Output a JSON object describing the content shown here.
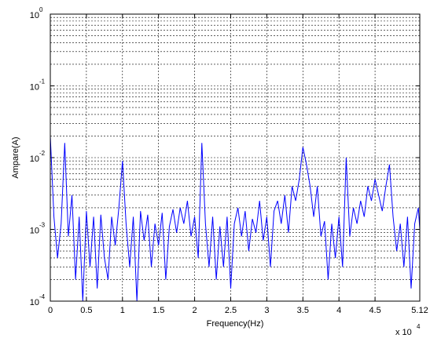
{
  "chart_data": {
    "type": "line",
    "xlabel": "Frequency(Hz)",
    "ylabel": "Ampare(A)",
    "x_multiplier": {
      "base": "x 10",
      "exponent": "4"
    },
    "xlim": [
      0,
      5.12
    ],
    "ylim": [
      0.0001,
      1
    ],
    "yscale": "log",
    "grid": true,
    "xticks": [
      0,
      0.5,
      1,
      1.5,
      2,
      2.5,
      3,
      3.5,
      4,
      4.5,
      5.12
    ],
    "yticks": [
      {
        "value": 0.0001,
        "label": "10",
        "sup": "-4"
      },
      {
        "value": 0.001,
        "label": "10",
        "sup": "-3"
      },
      {
        "value": 0.01,
        "label": "10",
        "sup": "-2"
      },
      {
        "value": 0.1,
        "label": "10",
        "sup": "-1"
      },
      {
        "value": 1,
        "label": "10",
        "sup": "0"
      }
    ],
    "series": [
      {
        "color": "#0000ff",
        "x": [
          0,
          0.05,
          0.1,
          0.15,
          0.2,
          0.25,
          0.3,
          0.35,
          0.4,
          0.45,
          0.5,
          0.55,
          0.6,
          0.65,
          0.7,
          0.75,
          0.8,
          0.85,
          0.9,
          0.95,
          1,
          1.05,
          1.1,
          1.15,
          1.2,
          1.25,
          1.3,
          1.35,
          1.4,
          1.45,
          1.5,
          1.55,
          1.6,
          1.65,
          1.7,
          1.75,
          1.8,
          1.85,
          1.9,
          1.95,
          2,
          2.05,
          2.1,
          2.15,
          2.2,
          2.25,
          2.3,
          2.35,
          2.4,
          2.45,
          2.5,
          2.55,
          2.6,
          2.65,
          2.7,
          2.75,
          2.8,
          2.85,
          2.9,
          2.95,
          3,
          3.05,
          3.1,
          3.15,
          3.2,
          3.25,
          3.3,
          3.35,
          3.4,
          3.45,
          3.5,
          3.55,
          3.6,
          3.65,
          3.7,
          3.75,
          3.8,
          3.85,
          3.9,
          3.95,
          4,
          4.05,
          4.1,
          4.15,
          4.2,
          4.25,
          4.3,
          4.35,
          4.4,
          4.45,
          4.5,
          4.55,
          4.6,
          4.65,
          4.7,
          4.75,
          4.8,
          4.85,
          4.9,
          4.95,
          5,
          5.05,
          5.1,
          5.12
        ],
        "values": [
          0.02,
          0.0015,
          0.0004,
          0.0012,
          0.016,
          0.0008,
          0.003,
          0.0002,
          0.0015,
          0.0001,
          0.0018,
          0.0003,
          0.0015,
          0.00015,
          0.0016,
          0.0004,
          0.0002,
          0.0015,
          0.0006,
          0.002,
          0.009,
          0.0012,
          0.0003,
          0.0015,
          0.0001,
          0.0018,
          0.0007,
          0.0016,
          0.0003,
          0.0012,
          0.0006,
          0.0017,
          0.0002,
          0.0011,
          0.0019,
          0.0009,
          0.002,
          0.0012,
          0.0025,
          0.0008,
          0.0015,
          0.0004,
          0.016,
          0.0012,
          0.0003,
          0.0015,
          0.0002,
          0.0011,
          0.0003,
          0.0015,
          0.00015,
          0.0012,
          0.002,
          0.0008,
          0.0018,
          0.0005,
          0.0014,
          0.0009,
          0.0025,
          0.0007,
          0.0015,
          0.0003,
          0.0018,
          0.0025,
          0.0012,
          0.003,
          0.0009,
          0.004,
          0.0025,
          0.005,
          0.014,
          0.008,
          0.004,
          0.0015,
          0.004,
          0.0008,
          0.0013,
          0.0002,
          0.0012,
          0.0004,
          0.0015,
          0.0003,
          0.01,
          0.0008,
          0.002,
          0.0012,
          0.0025,
          0.0015,
          0.004,
          0.0025,
          0.005,
          0.003,
          0.0018,
          0.004,
          0.008,
          0.0015,
          0.0005,
          0.0012,
          0.0003,
          0.0015,
          0.00015,
          0.0012,
          0.002,
          0.001
        ]
      }
    ]
  }
}
